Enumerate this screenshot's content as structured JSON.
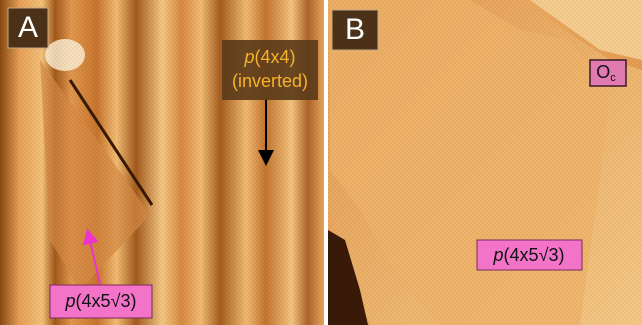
{
  "panels": [
    {
      "letter": "A",
      "labels": [
        {
          "italic": "p",
          "text": "(4x4)",
          "line2": "(inverted)"
        },
        {
          "italic": "p",
          "text": "(4x5√3)"
        }
      ]
    },
    {
      "letter": "B",
      "labels": [
        {
          "main": "O",
          "sub": "c"
        },
        {
          "italic": "p",
          "text": "(4x5√3)"
        }
      ]
    }
  ]
}
